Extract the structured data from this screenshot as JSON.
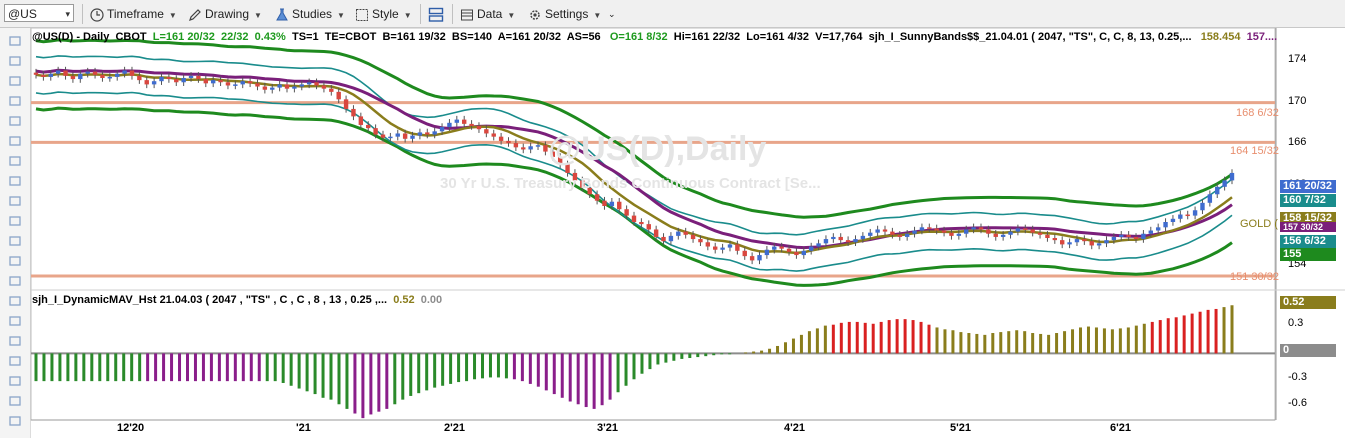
{
  "toolbar": {
    "symbol": "@US",
    "timeframe": "Timeframe",
    "drawing": "Drawing",
    "studies": "Studies",
    "style": "Style",
    "data": "Data",
    "settings": "Settings"
  },
  "header": {
    "symbol": "@US(D) - Daily",
    "exchange": "CBOT",
    "last": "L=161 20/32",
    "change": "22/32",
    "change_pct": "0.43%",
    "ts": "TS=1",
    "te": "TE=CBOT",
    "bid": "B=161 19/32",
    "bs": "BS=140",
    "ask": "A=161 20/32",
    "as": "AS=56",
    "open": "O=161 8/32",
    "high": "Hi=161 22/32",
    "low": "Lo=161 4/32",
    "volume": "V=17,764",
    "study": "sjh_I_SunnyBands$$_21.04.01 (  2047,  \"TS\",  C,  C,    8,  13,  0.25,...",
    "study_v1": "158.454",
    "study_v2": "157...."
  },
  "watermark": {
    "title": "@US(D),Daily",
    "subtitle": "30 Yr U.S. Treasury Bonds Continuous Contract [Se..."
  },
  "indicator": {
    "label": "sjh_I_DynamicMAV_Hst 21.04.03 ( 2047 , \"TS\" , C , C ,  8 , 13 , 0.25 ,...",
    "value1": "0.52",
    "value2": "0.00"
  },
  "price_axis": {
    "ticks": [
      "174",
      "170",
      "166",
      "162",
      "158",
      "154"
    ],
    "ind_ticks": [
      "0.3",
      "-0.3",
      "-0.6"
    ]
  },
  "hlines": [
    {
      "label": "168 6/32",
      "value": 168.1875
    },
    {
      "label": "164 15/32",
      "value": 164.46875
    },
    {
      "label": "151 30/32",
      "value": 151.9375
    }
  ],
  "price_tags": [
    {
      "text": "161 20/32",
      "color": "#3f6ccf"
    },
    {
      "text": "160 7/32",
      "color": "#1a8c8c"
    },
    {
      "text": "158 15/32",
      "color": "#8a7d1c"
    },
    {
      "text": "157 30/32",
      "color": "#7a1f7a"
    },
    {
      "text": "156 6/32",
      "color": "#1a8c8c"
    },
    {
      "text": "155",
      "color": "#1e8a1e"
    },
    {
      "text": "0.52",
      "color": "#8a7d1c"
    },
    {
      "text": "0",
      "color": "#8c8c8c"
    }
  ],
  "gold_label": "GOLD (",
  "x_labels": [
    "12'20",
    "'21",
    "2'21",
    "3'21",
    "4'21",
    "5'21",
    "6'21"
  ],
  "chart_data": {
    "type": "candlestick",
    "ylim": [
      151,
      175
    ],
    "ind_ylim": [
      -0.72,
      0.62
    ],
    "closes": [
      170.8,
      170.6,
      170.9,
      171.2,
      170.7,
      170.4,
      170.9,
      171.1,
      170.8,
      170.5,
      170.6,
      170.9,
      171.2,
      170.7,
      170.3,
      169.9,
      170.2,
      170.6,
      170.4,
      170.1,
      170.5,
      170.7,
      170.4,
      170.0,
      170.3,
      170.1,
      169.8,
      169.9,
      170.2,
      170.0,
      169.7,
      169.4,
      169.6,
      169.9,
      169.5,
      169.7,
      169.9,
      170.1,
      169.8,
      169.5,
      169.2,
      168.5,
      167.6,
      166.9,
      166.1,
      165.8,
      165.2,
      164.9,
      165.0,
      165.3,
      164.8,
      165.1,
      165.4,
      165.2,
      165.5,
      165.9,
      166.3,
      166.6,
      166.2,
      166.0,
      165.7,
      165.3,
      165.0,
      164.6,
      164.4,
      164.0,
      163.8,
      164.1,
      164.2,
      163.6,
      163.1,
      162.4,
      161.6,
      160.9,
      160.2,
      159.6,
      159.0,
      158.5,
      158.9,
      158.2,
      157.6,
      157.0,
      156.8,
      156.3,
      155.6,
      155.2,
      155.7,
      156.1,
      155.8,
      155.4,
      155.1,
      154.7,
      154.4,
      154.6,
      154.9,
      154.3,
      153.8,
      153.4,
      153.9,
      154.4,
      154.7,
      154.5,
      154.2,
      153.9,
      154.3,
      154.7,
      155.0,
      155.4,
      155.6,
      155.3,
      155.1,
      155.4,
      155.7,
      156.0,
      156.3,
      156.1,
      155.8,
      155.6,
      155.9,
      156.2,
      156.5,
      156.4,
      156.2,
      156.0,
      155.7,
      155.9,
      156.3,
      156.5,
      156.3,
      155.9,
      155.6,
      155.8,
      156.1,
      156.4,
      156.3,
      156.0,
      155.8,
      155.5,
      155.3,
      154.9,
      155.1,
      155.4,
      155.2,
      154.8,
      155.0,
      155.3,
      155.6,
      155.8,
      155.6,
      155.4,
      155.9,
      156.2,
      156.5,
      157.0,
      157.3,
      157.7,
      157.6,
      158.1,
      158.8,
      159.6,
      160.3,
      160.9,
      161.6
    ],
    "ind": [
      -0.3,
      -0.3,
      -0.3,
      -0.3,
      -0.3,
      -0.3,
      -0.3,
      -0.3,
      -0.3,
      -0.3,
      -0.3,
      -0.3,
      -0.3,
      -0.3,
      -0.3,
      -0.3,
      -0.3,
      -0.3,
      -0.3,
      -0.3,
      -0.3,
      -0.3,
      -0.3,
      -0.3,
      -0.3,
      -0.3,
      -0.3,
      -0.3,
      -0.3,
      -0.3,
      -0.3,
      -0.32,
      -0.35,
      -0.38,
      -0.41,
      -0.44,
      -0.48,
      -0.5,
      -0.55,
      -0.6,
      -0.65,
      -0.7,
      -0.66,
      -0.63,
      -0.6,
      -0.55,
      -0.5,
      -0.46,
      -0.43,
      -0.4,
      -0.37,
      -0.35,
      -0.33,
      -0.31,
      -0.3,
      -0.28,
      -0.27,
      -0.26,
      -0.26,
      -0.27,
      -0.28,
      -0.3,
      -0.33,
      -0.36,
      -0.4,
      -0.44,
      -0.48,
      -0.52,
      -0.55,
      -0.58,
      -0.6,
      -0.56,
      -0.5,
      -0.42,
      -0.35,
      -0.28,
      -0.22,
      -0.17,
      -0.12,
      -0.1,
      -0.08,
      -0.06,
      -0.05,
      -0.04,
      -0.03,
      -0.02,
      -0.01,
      -0.01,
      0.0,
      0.01,
      0.02,
      0.03,
      0.05,
      0.08,
      0.12,
      0.16,
      0.2,
      0.24,
      0.27,
      0.3,
      0.31,
      0.33,
      0.34,
      0.34,
      0.33,
      0.32,
      0.34,
      0.36,
      0.37,
      0.37,
      0.36,
      0.34,
      0.31,
      0.28,
      0.26,
      0.25,
      0.23,
      0.22,
      0.21,
      0.2,
      0.22,
      0.23,
      0.24,
      0.25,
      0.24,
      0.22,
      0.21,
      0.2,
      0.22,
      0.24,
      0.26,
      0.28,
      0.29,
      0.28,
      0.27,
      0.26,
      0.27,
      0.28,
      0.3,
      0.32,
      0.34,
      0.36,
      0.38,
      0.39,
      0.41,
      0.43,
      0.45,
      0.47,
      0.48,
      0.5,
      0.52
    ]
  }
}
